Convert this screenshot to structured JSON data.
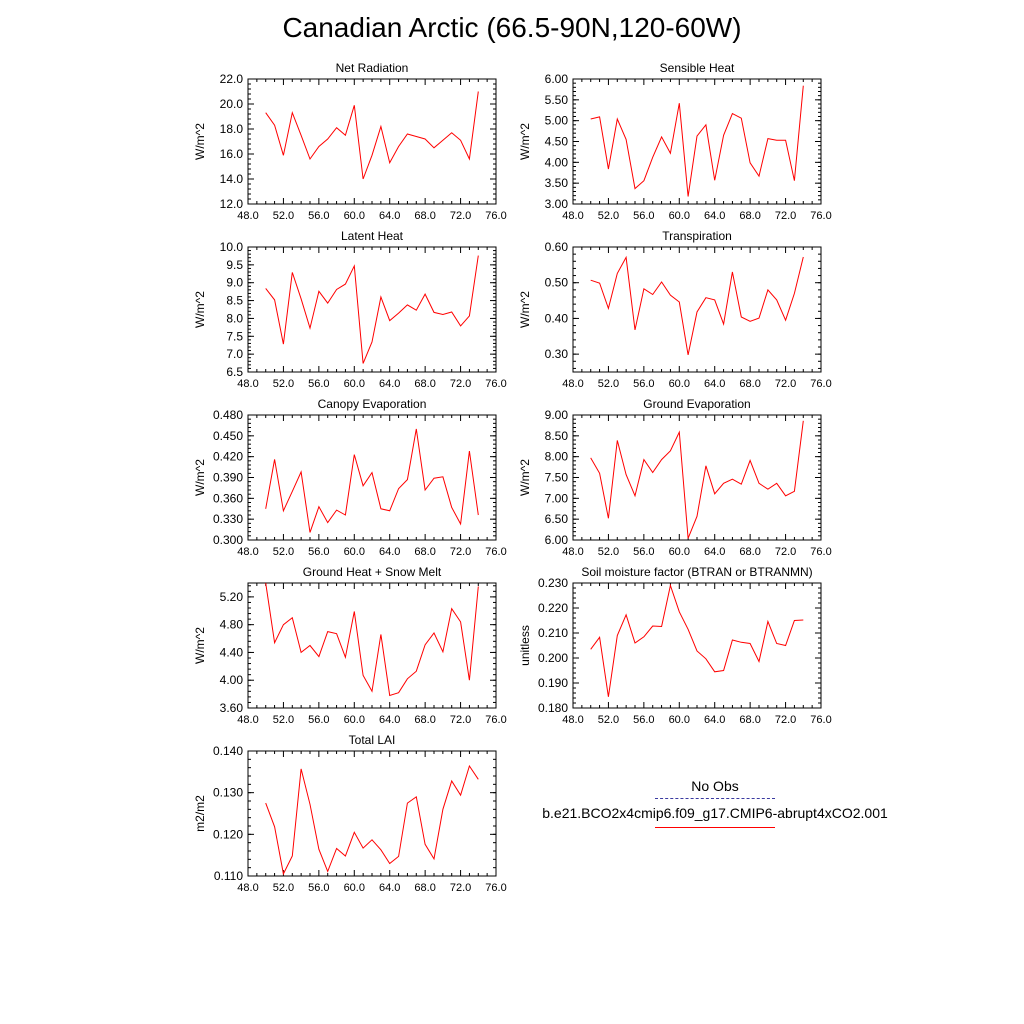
{
  "figure": {
    "title": "Canadian Arctic (66.5-90N,120-60W)"
  },
  "legend": {
    "obs_label": "No Obs",
    "model_label": "b.e21.BCO2x4cmip6.f09_g17.CMIP6-abrupt4xCO2.001",
    "obs_color": "#3a3aa0",
    "model_color": "#ff0000"
  },
  "chart_data": [
    {
      "type": "line",
      "title": "Net Radiation",
      "ylabel": "W/m^2",
      "xlim": [
        48,
        76
      ],
      "xticks": [
        "48.0",
        "52.0",
        "56.0",
        "60.0",
        "64.0",
        "68.0",
        "72.0",
        "76.0"
      ],
      "ylim": [
        12,
        22
      ],
      "yticks": [
        "12.0",
        "14.0",
        "16.0",
        "18.0",
        "20.0",
        "22.0"
      ],
      "x": [
        50,
        51,
        52,
        53,
        54,
        55,
        56,
        57,
        58,
        59,
        60,
        61,
        62,
        63,
        64,
        65,
        66,
        67,
        68,
        69,
        70,
        71,
        72,
        73,
        74
      ],
      "values": [
        19.3,
        18.3,
        15.9,
        19.3,
        17.5,
        15.6,
        16.6,
        17.2,
        18.1,
        17.5,
        19.9,
        14.0,
        15.9,
        18.2,
        15.3,
        16.6,
        17.6,
        17.4,
        17.2,
        16.5,
        17.1,
        17.7,
        17.1,
        15.6,
        21.0
      ]
    },
    {
      "type": "line",
      "title": "Sensible Heat",
      "ylabel": "W/m^2",
      "xlim": [
        48,
        76
      ],
      "xticks": [
        "48.0",
        "52.0",
        "56.0",
        "60.0",
        "64.0",
        "68.0",
        "72.0",
        "76.0"
      ],
      "ylim": [
        3.0,
        6.0
      ],
      "yticks": [
        "3.00",
        "3.50",
        "4.00",
        "4.50",
        "5.00",
        "5.50",
        "6.00"
      ],
      "x": [
        50,
        51,
        52,
        53,
        54,
        55,
        56,
        57,
        58,
        59,
        60,
        61,
        62,
        63,
        64,
        65,
        66,
        67,
        68,
        69,
        70,
        71,
        72,
        73,
        74
      ],
      "values": [
        5.04,
        5.09,
        3.84,
        5.04,
        4.55,
        3.37,
        3.56,
        4.12,
        4.61,
        4.22,
        5.42,
        3.18,
        4.63,
        4.9,
        3.57,
        4.65,
        5.17,
        5.06,
        3.99,
        3.67,
        4.57,
        4.53,
        4.53,
        3.56,
        5.84
      ]
    },
    {
      "type": "line",
      "title": "Latent Heat",
      "ylabel": "W/m^2",
      "xlim": [
        48,
        76
      ],
      "xticks": [
        "48.0",
        "52.0",
        "56.0",
        "60.0",
        "64.0",
        "68.0",
        "72.0",
        "76.0"
      ],
      "ylim": [
        6.5,
        10.0
      ],
      "yticks": [
        "6.5",
        "7.0",
        "7.5",
        "8.0",
        "8.5",
        "9.0",
        "9.5",
        "10.0"
      ],
      "x": [
        50,
        51,
        52,
        53,
        54,
        55,
        56,
        57,
        58,
        59,
        60,
        61,
        62,
        63,
        64,
        65,
        66,
        67,
        68,
        69,
        70,
        71,
        72,
        73,
        74
      ],
      "values": [
        8.84,
        8.52,
        7.28,
        9.29,
        8.55,
        7.73,
        8.76,
        8.43,
        8.81,
        8.96,
        9.47,
        6.74,
        7.34,
        8.6,
        7.94,
        8.15,
        8.38,
        8.23,
        8.68,
        8.17,
        8.11,
        8.18,
        7.79,
        8.07,
        9.76
      ]
    },
    {
      "type": "line",
      "title": "Transpiration",
      "ylabel": "W/m^2",
      "xlim": [
        48,
        76
      ],
      "xticks": [
        "48.0",
        "52.0",
        "56.0",
        "60.0",
        "64.0",
        "68.0",
        "72.0",
        "76.0"
      ],
      "ylim": [
        0.25,
        0.6
      ],
      "yticks": [
        "0.30",
        "0.40",
        "0.50",
        "0.60"
      ],
      "x": [
        50,
        51,
        52,
        53,
        54,
        55,
        56,
        57,
        58,
        59,
        60,
        61,
        62,
        63,
        64,
        65,
        66,
        67,
        68,
        69,
        70,
        71,
        72,
        73,
        74
      ],
      "values": [
        0.507,
        0.499,
        0.428,
        0.526,
        0.571,
        0.368,
        0.483,
        0.467,
        0.502,
        0.465,
        0.446,
        0.298,
        0.418,
        0.458,
        0.452,
        0.384,
        0.53,
        0.404,
        0.392,
        0.401,
        0.48,
        0.452,
        0.395,
        0.47,
        0.572
      ]
    },
    {
      "type": "line",
      "title": "Canopy Evaporation",
      "ylabel": "W/m^2",
      "xlim": [
        48,
        76
      ],
      "xticks": [
        "48.0",
        "52.0",
        "56.0",
        "60.0",
        "64.0",
        "68.0",
        "72.0",
        "76.0"
      ],
      "ylim": [
        0.3,
        0.48
      ],
      "yticks": [
        "0.300",
        "0.330",
        "0.360",
        "0.390",
        "0.420",
        "0.450",
        "0.480"
      ],
      "x": [
        50,
        51,
        52,
        53,
        54,
        55,
        56,
        57,
        58,
        59,
        60,
        61,
        62,
        63,
        64,
        65,
        66,
        67,
        68,
        69,
        70,
        71,
        72,
        73,
        74
      ],
      "values": [
        0.345,
        0.416,
        0.342,
        0.37,
        0.398,
        0.311,
        0.348,
        0.325,
        0.343,
        0.336,
        0.423,
        0.378,
        0.397,
        0.345,
        0.342,
        0.374,
        0.387,
        0.46,
        0.372,
        0.389,
        0.391,
        0.347,
        0.323,
        0.428,
        0.336
      ]
    },
    {
      "type": "line",
      "title": "Ground Evaporation",
      "ylabel": "W/m^2",
      "xlim": [
        48,
        76
      ],
      "xticks": [
        "48.0",
        "52.0",
        "56.0",
        "60.0",
        "64.0",
        "68.0",
        "72.0",
        "76.0"
      ],
      "ylim": [
        6.0,
        9.0
      ],
      "yticks": [
        "6.00",
        "6.50",
        "7.00",
        "7.50",
        "8.00",
        "8.50",
        "9.00"
      ],
      "x": [
        50,
        51,
        52,
        53,
        54,
        55,
        56,
        57,
        58,
        59,
        60,
        61,
        62,
        63,
        64,
        65,
        66,
        67,
        68,
        69,
        70,
        71,
        72,
        73,
        74
      ],
      "values": [
        7.97,
        7.6,
        6.52,
        8.39,
        7.57,
        7.06,
        7.93,
        7.62,
        7.93,
        8.14,
        8.59,
        6.04,
        6.57,
        7.78,
        7.11,
        7.36,
        7.46,
        7.34,
        7.91,
        7.36,
        7.22,
        7.36,
        7.06,
        7.17,
        8.86
      ]
    },
    {
      "type": "line",
      "title": "Ground Heat + Snow Melt",
      "ylabel": "W/m^2",
      "xlim": [
        48,
        76
      ],
      "xticks": [
        "48.0",
        "52.0",
        "56.0",
        "60.0",
        "64.0",
        "68.0",
        "72.0",
        "76.0"
      ],
      "ylim": [
        3.6,
        5.4
      ],
      "yticks": [
        "3.60",
        "4.00",
        "4.40",
        "4.80",
        "5.20"
      ],
      "x": [
        50,
        51,
        52,
        53,
        54,
        55,
        56,
        57,
        58,
        59,
        60,
        61,
        62,
        63,
        64,
        65,
        66,
        67,
        68,
        69,
        70,
        71,
        72,
        73,
        74
      ],
      "values": [
        5.4,
        4.54,
        4.8,
        4.9,
        4.4,
        4.5,
        4.34,
        4.7,
        4.67,
        4.33,
        4.99,
        4.07,
        3.84,
        4.66,
        3.78,
        3.82,
        4.02,
        4.13,
        4.51,
        4.68,
        4.41,
        5.03,
        4.84,
        4.0,
        5.35
      ]
    },
    {
      "type": "line",
      "title": "Soil moisture factor (BTRAN or BTRANMN)",
      "ylabel": "unitless",
      "xlim": [
        48,
        76
      ],
      "xticks": [
        "48.0",
        "52.0",
        "56.0",
        "60.0",
        "64.0",
        "68.0",
        "72.0",
        "76.0"
      ],
      "ylim": [
        0.18,
        0.23
      ],
      "yticks": [
        "0.180",
        "0.190",
        "0.200",
        "0.210",
        "0.220",
        "0.230"
      ],
      "x": [
        50,
        51,
        52,
        53,
        54,
        55,
        56,
        57,
        58,
        59,
        60,
        61,
        62,
        63,
        64,
        65,
        66,
        67,
        68,
        69,
        70,
        71,
        72,
        73,
        74
      ],
      "values": [
        0.2035,
        0.2083,
        0.1845,
        0.209,
        0.2173,
        0.206,
        0.2085,
        0.2128,
        0.2126,
        0.229,
        0.2185,
        0.2115,
        0.2028,
        0.1997,
        0.1945,
        0.195,
        0.2072,
        0.2063,
        0.2058,
        0.1986,
        0.2146,
        0.2058,
        0.205,
        0.215,
        0.2152
      ]
    },
    {
      "type": "line",
      "title": "Total LAI",
      "ylabel": "m2/m2",
      "xlim": [
        48,
        76
      ],
      "xticks": [
        "48.0",
        "52.0",
        "56.0",
        "60.0",
        "64.0",
        "68.0",
        "72.0",
        "76.0"
      ],
      "ylim": [
        0.11,
        0.14
      ],
      "yticks": [
        "0.110",
        "0.120",
        "0.130",
        "0.140"
      ],
      "x": [
        50,
        51,
        52,
        53,
        54,
        55,
        56,
        57,
        58,
        59,
        60,
        61,
        62,
        63,
        64,
        65,
        66,
        67,
        68,
        69,
        70,
        71,
        72,
        73,
        74
      ],
      "values": [
        0.1275,
        0.1218,
        0.1105,
        0.1148,
        0.1357,
        0.1272,
        0.1164,
        0.1111,
        0.1166,
        0.1148,
        0.1205,
        0.1167,
        0.1187,
        0.1163,
        0.113,
        0.1147,
        0.1275,
        0.129,
        0.1176,
        0.1141,
        0.126,
        0.1328,
        0.1294,
        0.1364,
        0.1332
      ]
    }
  ]
}
